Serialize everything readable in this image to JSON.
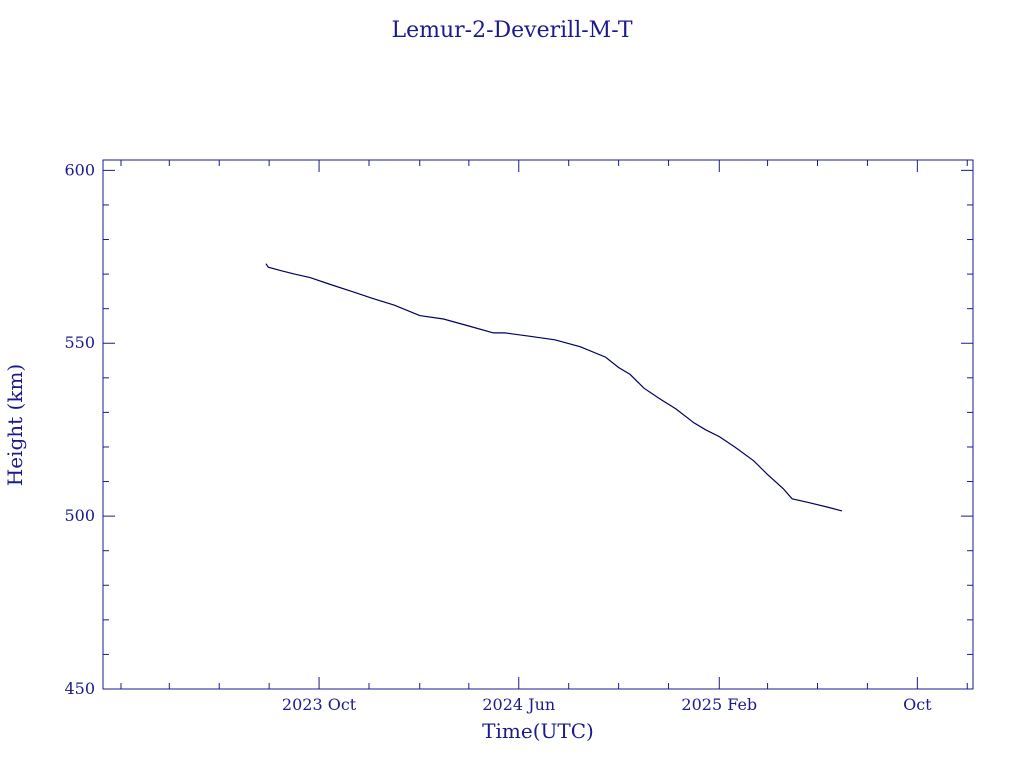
{
  "chart_data": {
    "type": "line",
    "title": "Lemur-2-Deverill-M-T",
    "xlabel": "Time(UTC)",
    "ylabel": "Height (km)",
    "colors": {
      "axes": "#1a1a8c",
      "line": "#000060"
    },
    "ylim": [
      450,
      603
    ],
    "xlim": [
      "2023-01-10",
      "2025-12-08"
    ],
    "x_ticks": [
      {
        "date": "2023-10-01",
        "label": "2023 Oct"
      },
      {
        "date": "2024-06-01",
        "label": "2024 Jun"
      },
      {
        "date": "2025-02-01",
        "label": "2025 Feb"
      },
      {
        "date": "2025-10-01",
        "label": "Oct"
      }
    ],
    "y_ticks": [
      450,
      500,
      550,
      600
    ],
    "grid": false,
    "series": [
      {
        "x": [
          "2023-07-28",
          "2023-07-31",
          "2023-08-15",
          "2023-09-01",
          "2023-09-20",
          "2023-10-15",
          "2023-11-10",
          "2023-12-05",
          "2024-01-01",
          "2024-02-01",
          "2024-03-01",
          "2024-04-01",
          "2024-05-01",
          "2024-05-15",
          "2024-06-15",
          "2024-07-15",
          "2024-08-15",
          "2024-09-15",
          "2024-10-01",
          "2024-10-15",
          "2024-11-01",
          "2024-11-20",
          "2024-12-10",
          "2025-01-01",
          "2025-01-15",
          "2025-02-01",
          "2025-02-20",
          "2025-03-15",
          "2025-04-01",
          "2025-04-20",
          "2025-05-01",
          "2025-05-20",
          "2025-06-15",
          "2025-07-01"
        ],
        "y": [
          573,
          572,
          571,
          570,
          569,
          567,
          565,
          563,
          561,
          558,
          557,
          555,
          553,
          553,
          552,
          551,
          549,
          546,
          543,
          541,
          537,
          534,
          531,
          527,
          525,
          523,
          520,
          516,
          512,
          508,
          505,
          504,
          502.5,
          501.5
        ]
      }
    ]
  }
}
